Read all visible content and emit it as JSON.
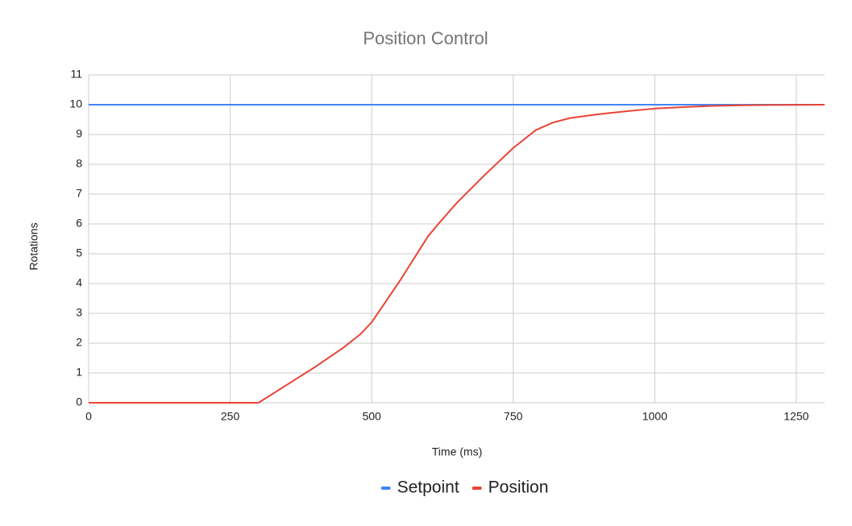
{
  "chart_data": {
    "type": "line",
    "title": "Position Control",
    "x_label": "Time (ms)",
    "y_label": "Rotations",
    "x": [
      0,
      300,
      350,
      400,
      450,
      480,
      500,
      550,
      600,
      620,
      650,
      700,
      750,
      790,
      820,
      850,
      900,
      950,
      1000,
      1050,
      1100,
      1150,
      1200,
      1300
    ],
    "series": [
      {
        "name": "Setpoint",
        "color": "#4285f4",
        "values": [
          10,
          10,
          10,
          10,
          10,
          10,
          10,
          10,
          10,
          10,
          10,
          10,
          10,
          10,
          10,
          10,
          10,
          10,
          10,
          10,
          10,
          10,
          10,
          10
        ]
      },
      {
        "name": "Position",
        "color": "#ea4335",
        "values": [
          0,
          0,
          0.6,
          1.2,
          1.85,
          2.3,
          2.7,
          4.1,
          5.6,
          6.05,
          6.7,
          7.65,
          8.55,
          9.15,
          9.4,
          9.55,
          9.68,
          9.78,
          9.87,
          9.92,
          9.96,
          9.98,
          9.99,
          10
        ]
      }
    ],
    "xlim": [
      0,
      1300
    ],
    "xticks": [
      0,
      250,
      500,
      750,
      1000,
      1250
    ],
    "ylim": [
      0,
      11
    ],
    "yticks": [
      0,
      1,
      2,
      3,
      4,
      5,
      6,
      7,
      8,
      9,
      10,
      11
    ],
    "grid": true,
    "legend": "bottom"
  }
}
